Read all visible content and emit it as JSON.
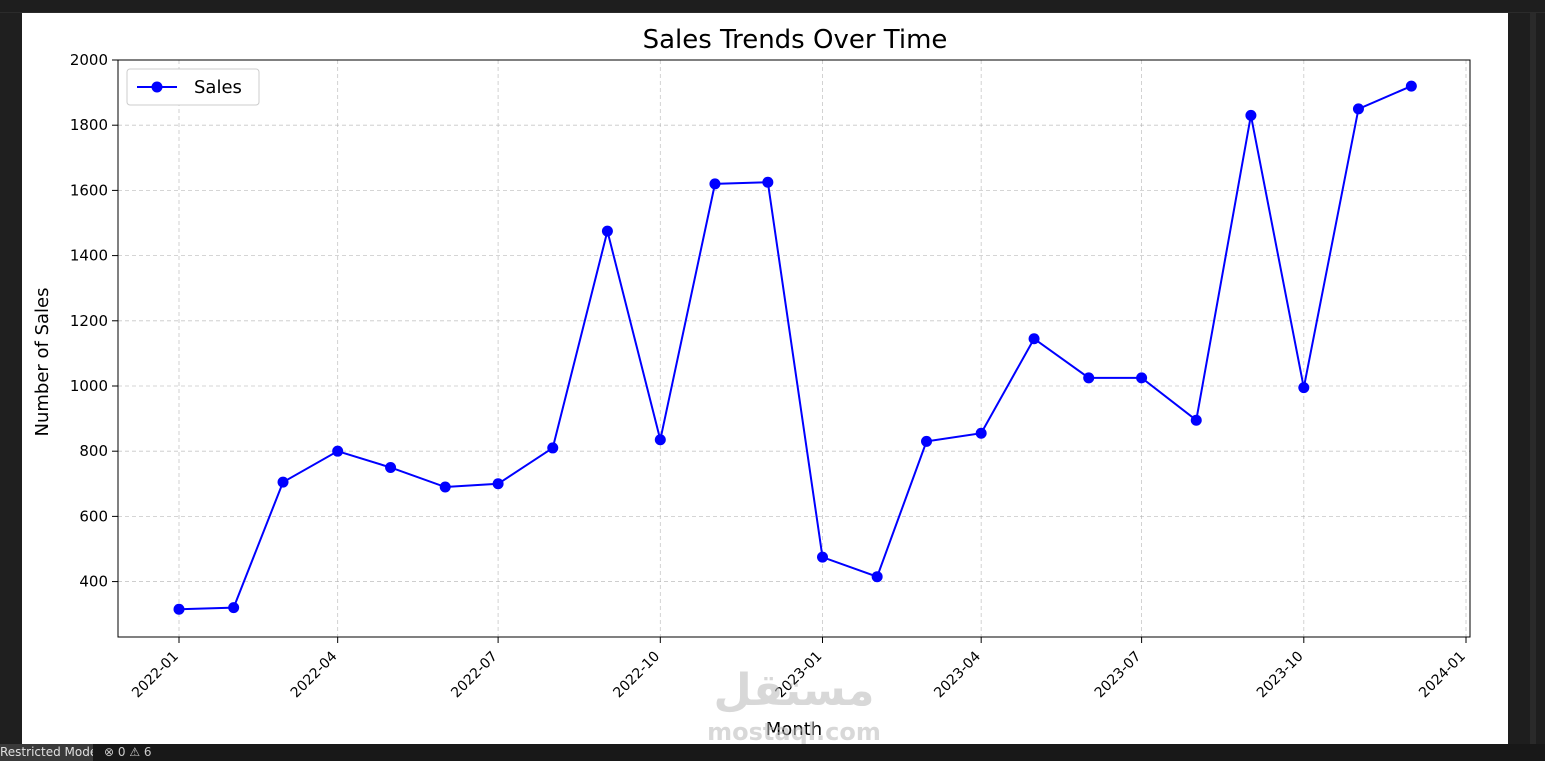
{
  "chart_data": {
    "type": "line",
    "title": "Sales Trends Over Time",
    "xlabel": "Month",
    "ylabel": "Number of Sales",
    "x": [
      "2022-01",
      "2022-02",
      "2022-03",
      "2022-04",
      "2022-05",
      "2022-06",
      "2022-07",
      "2022-08",
      "2022-09",
      "2022-10",
      "2022-11",
      "2022-12",
      "2023-01",
      "2023-02",
      "2023-03",
      "2023-04",
      "2023-05",
      "2023-06",
      "2023-07",
      "2023-08",
      "2023-09",
      "2023-10",
      "2023-11",
      "2023-12"
    ],
    "series": [
      {
        "name": "Sales",
        "color": "#0000ff",
        "values": [
          315,
          320,
          705,
          800,
          750,
          690,
          700,
          810,
          1475,
          835,
          1620,
          1625,
          475,
          415,
          830,
          855,
          1145,
          1025,
          1025,
          895,
          1830,
          995,
          1850,
          1920
        ]
      }
    ],
    "xticks": [
      "2022-01",
      "2022-04",
      "2022-07",
      "2022-10",
      "2023-01",
      "2023-04",
      "2023-07",
      "2023-10",
      "2024-01"
    ],
    "yticks": [
      400,
      600,
      800,
      1000,
      1200,
      1400,
      1600,
      1800,
      2000
    ],
    "ylim": [
      230,
      2000
    ],
    "grid": true,
    "legend_position": "top-left"
  },
  "watermark": {
    "text": "مستقل",
    "subtext": "mostaql.com"
  },
  "statusbar": {
    "mode_label": "Restricted Mode",
    "problems": "⊗ 0 ⚠ 6"
  }
}
